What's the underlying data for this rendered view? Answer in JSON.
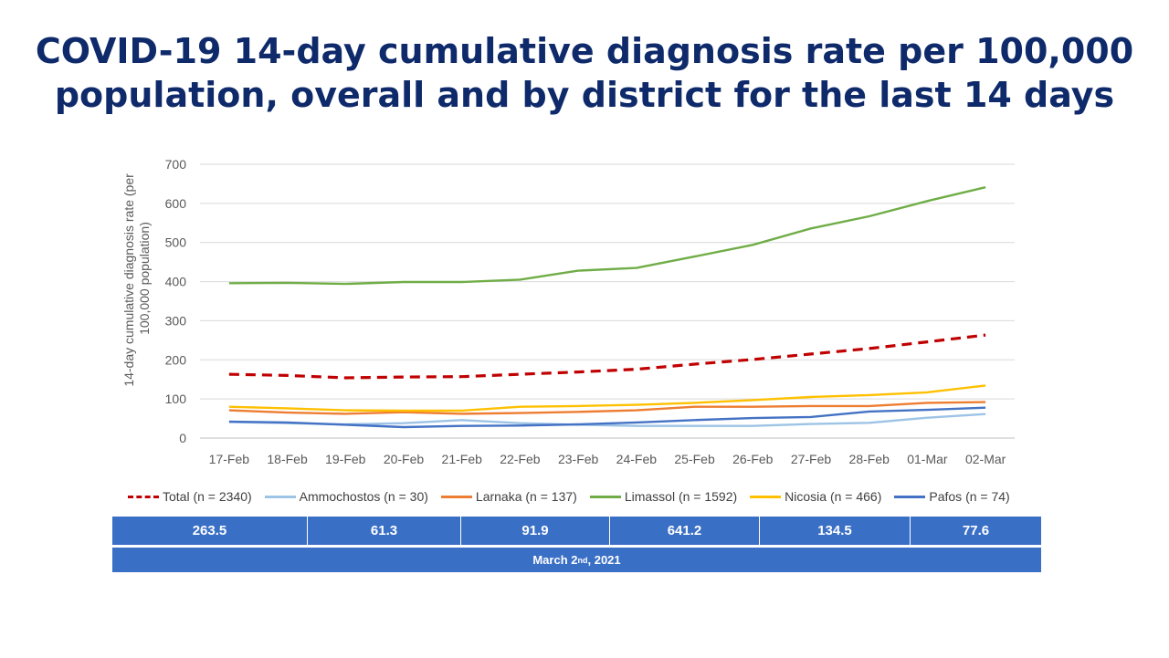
{
  "title": {
    "line1": "COVID-19 14-day cumulative diagnosis rate per 100,000",
    "line2": "population, overall and by district for the last 14 days"
  },
  "chart_data": {
    "type": "line",
    "ylabel_line1": "14-day cumulative diagnosis rate (per",
    "ylabel_line2": "100,000 population)",
    "ylim": [
      0,
      700
    ],
    "yticks": [
      0,
      100,
      200,
      300,
      400,
      500,
      600,
      700
    ],
    "grid": true,
    "legend_placement": "bottom",
    "categories": [
      "17-Feb",
      "18-Feb",
      "19-Feb",
      "20-Feb",
      "21-Feb",
      "22-Feb",
      "23-Feb",
      "24-Feb",
      "25-Feb",
      "26-Feb",
      "27-Feb",
      "28-Feb",
      "01-Mar",
      "02-Mar"
    ],
    "series": [
      {
        "name": "Total (n = 2340)",
        "color": "#c00000",
        "dashed": true,
        "values": [
          163,
          160,
          154,
          156,
          157,
          163,
          169,
          176,
          189,
          201,
          215,
          229,
          246,
          263.5
        ]
      },
      {
        "name": "Ammochostos (n = 30)",
        "color": "#9dc3e6",
        "dashed": false,
        "values": [
          41,
          38,
          35,
          38,
          46,
          38,
          34,
          31,
          31,
          31,
          36,
          39,
          52,
          61.3
        ]
      },
      {
        "name": "Larnaka (n = 137)",
        "color": "#ed7d31",
        "dashed": false,
        "values": [
          71,
          65,
          62,
          66,
          62,
          64,
          67,
          71,
          80,
          80,
          82,
          82,
          90,
          91.9
        ]
      },
      {
        "name": "Limassol (n = 1592)",
        "color": "#70ad47",
        "dashed": false,
        "values": [
          396,
          397,
          394,
          399,
          399,
          405,
          428,
          435,
          464,
          494,
          536,
          567,
          606,
          641.2
        ]
      },
      {
        "name": "Nicosia (n = 466)",
        "color": "#ffc000",
        "dashed": false,
        "values": [
          80,
          76,
          71,
          70,
          70,
          80,
          82,
          85,
          90,
          97,
          105,
          110,
          117,
          134.5
        ]
      },
      {
        "name": "Pafos (n = 74)",
        "color": "#4472c4",
        "dashed": false,
        "values": [
          42,
          40,
          34,
          28,
          31,
          32,
          35,
          40,
          46,
          51,
          54,
          68,
          72,
          77.6
        ]
      }
    ]
  },
  "summary": {
    "values": [
      "263.5",
      "61.3",
      "91.9",
      "641.2",
      "134.5",
      "77.6"
    ],
    "date_main": "March 2",
    "date_sup": "nd",
    "date_year": ", 2021",
    "color": "#3a6fc6"
  }
}
